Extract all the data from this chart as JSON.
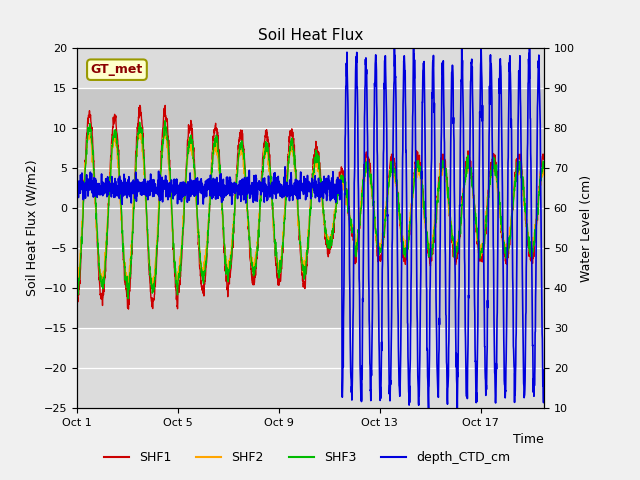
{
  "title": "Soil Heat Flux",
  "ylabel_left": "Soil Heat Flux (W/m2)",
  "ylabel_right": "Water Level (cm)",
  "xlabel": "Time",
  "annotation_text": "GT_met",
  "annotation_color": "#8B0000",
  "annotation_bg": "#FFFFCC",
  "annotation_border": "#999900",
  "ylim_left": [
    -25,
    20
  ],
  "ylim_right": [
    10,
    100
  ],
  "yticks_left": [
    -25,
    -20,
    -15,
    -10,
    -5,
    0,
    5,
    10,
    15,
    20
  ],
  "yticks_right": [
    10,
    20,
    30,
    40,
    50,
    60,
    70,
    80,
    90,
    100
  ],
  "xtick_labels": [
    "Oct 1",
    "Oct 5",
    "Oct 9",
    "Oct 13",
    "Oct 17"
  ],
  "xtick_positions": [
    0,
    4,
    8,
    12,
    16
  ],
  "background_color": "#F0F0F0",
  "plot_bg_light": "#DCDCDC",
  "plot_bg_dark": "#C8C8C8",
  "shaded_y_low": -15,
  "shaded_y_high": 15,
  "colors": {
    "SHF1": "#CC0000",
    "SHF2": "#FFA500",
    "SHF3": "#00BB00",
    "depth_CTD_cm": "#0000DD"
  },
  "legend_labels": [
    "SHF1",
    "SHF2",
    "SHF3",
    "depth_CTD_cm"
  ],
  "legend_colors": [
    "#CC0000",
    "#FFA500",
    "#00BB00",
    "#0000DD"
  ],
  "figsize": [
    6.4,
    4.8
  ],
  "dpi": 100
}
